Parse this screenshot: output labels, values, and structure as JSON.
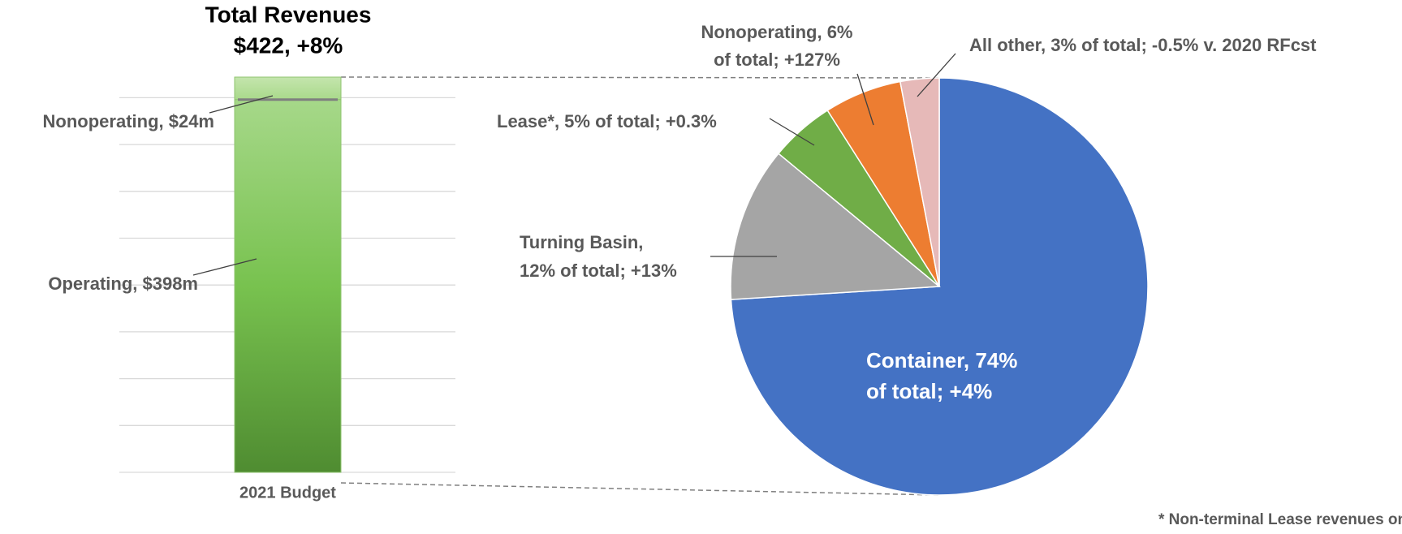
{
  "chart_data": [
    {
      "type": "bar",
      "stacked": true,
      "title": "Total Revenues",
      "subtitle": "$422, +8%",
      "categories": [
        "2021 Budget"
      ],
      "series": [
        {
          "name": "Operating",
          "color": "#70b94a",
          "values": [
            398
          ],
          "value_labels": [
            "Operating, $398m"
          ]
        },
        {
          "name": "Nonoperating",
          "color": "#b3dc97",
          "values": [
            24
          ],
          "value_labels": [
            "Nonoperating, $24m"
          ]
        }
      ],
      "ylim": [
        0,
        422
      ],
      "yticks": [
        0,
        50,
        100,
        150,
        200,
        250,
        300,
        350,
        400
      ],
      "grid": true
    },
    {
      "type": "pie",
      "categories": [
        "Container",
        "Turning Basin",
        "Lease*",
        "Nonoperating",
        "All other"
      ],
      "values": [
        74,
        12,
        5,
        6,
        3
      ],
      "colors": [
        "#4472c4",
        "#a5a5a5",
        "#70ad47",
        "#ed7d31",
        "#e6b9b8"
      ],
      "value_labels": [
        [
          "Container, 74%",
          "of total; +4%"
        ],
        [
          "Turning Basin,",
          "12% of total; +13%"
        ],
        [
          "Lease*, 5% of total; +0.3%"
        ],
        [
          "Nonoperating, 6%",
          "of total; +127%"
        ],
        [
          "All other, 3% of total; -0.5% v. 2020 RFcst"
        ]
      ],
      "footnote": "*  Non-terminal Lease revenues only"
    }
  ]
}
